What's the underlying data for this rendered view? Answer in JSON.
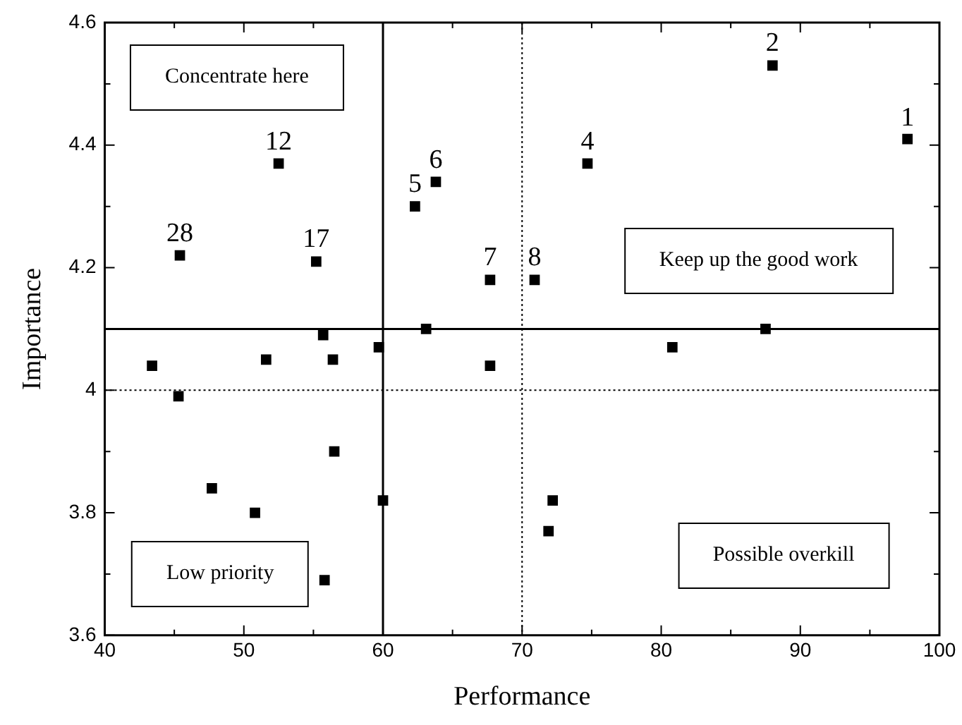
{
  "chart_data": {
    "type": "scatter",
    "xlabel": "Performance",
    "ylabel": "Importance",
    "x": [
      97.7,
      88,
      74.7,
      62.3,
      63.8,
      67.7,
      70.9,
      52.5,
      55.2,
      45.4,
      43.4,
      45.3,
      47.7,
      50.8,
      51.6,
      55.7,
      56.4,
      56.5,
      55.8,
      59.7,
      60,
      63.1,
      67.7,
      72.2,
      71.9,
      80.8,
      87.5
    ],
    "values": [
      4.41,
      4.53,
      4.37,
      4.3,
      4.34,
      4.18,
      4.18,
      4.37,
      4.21,
      4.22,
      4.04,
      3.99,
      3.84,
      3.8,
      4.05,
      4.09,
      4.05,
      3.9,
      3.69,
      4.07,
      3.82,
      4.1,
      4.04,
      3.82,
      3.77,
      4.07,
      4.1
    ],
    "color": "#000000",
    "marker": "square",
    "xlim": [
      40,
      100
    ],
    "ylim": [
      3.6,
      4.6
    ],
    "xticks": [
      40,
      {
        "value": 45,
        "label": null
      },
      50,
      {
        "value": 55,
        "label": null
      },
      60,
      {
        "value": 65,
        "label": null
      },
      70,
      {
        "value": 75,
        "label": null
      },
      80,
      {
        "value": 85,
        "label": null
      },
      90,
      {
        "value": 95,
        "label": null
      },
      100
    ],
    "yticks": [
      3.6,
      {
        "value": 3.7,
        "label": null
      },
      3.8,
      {
        "value": 3.9,
        "label": null
      },
      4.0,
      {
        "value": 4.1,
        "label": null
      },
      4.2,
      {
        "value": 4.3,
        "label": null
      },
      4.4,
      {
        "value": 4.5,
        "label": null
      },
      4.6
    ],
    "ref_lines": [
      {
        "axis": "x",
        "value": 60,
        "line_style": "solid"
      },
      {
        "axis": "x",
        "value": 70,
        "line_style": "dotted"
      },
      {
        "axis": "y",
        "value": 4.1,
        "line_style": "solid"
      },
      {
        "axis": "y",
        "value": 4.0,
        "line_style": "dotted"
      }
    ],
    "annotations": [
      {
        "text": "28",
        "x": 45.4,
        "y": 4.22
      },
      {
        "text": "12",
        "x": 52.5,
        "y": 4.37
      },
      {
        "text": "17",
        "x": 55.2,
        "y": 4.21
      },
      {
        "text": "5",
        "x": 62.3,
        "y": 4.3
      },
      {
        "text": "6",
        "x": 63.8,
        "y": 4.34
      },
      {
        "text": "7",
        "x": 67.7,
        "y": 4.18
      },
      {
        "text": "8",
        "x": 70.9,
        "y": 4.18
      },
      {
        "text": "4",
        "x": 74.7,
        "y": 4.37
      },
      {
        "text": "2",
        "x": 88,
        "y": 4.53
      },
      {
        "text": "1",
        "x": 97.7,
        "y": 4.41
      },
      "Concentrate here",
      "Keep up the good work",
      "Low priority",
      "Possible overkill"
    ],
    "grid": false,
    "legend": false
  }
}
